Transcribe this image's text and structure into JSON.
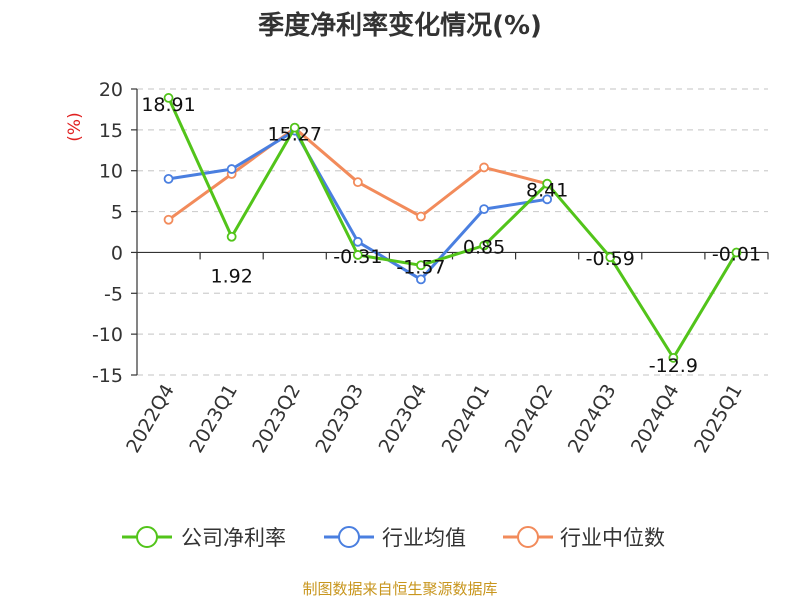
{
  "chart_data": {
    "type": "line",
    "title": "季度净利率变化情况(%)",
    "ylabel": "(%)",
    "ylim": [
      -15,
      20
    ],
    "yticks": [
      20,
      15,
      10,
      5,
      0,
      -5,
      -10,
      -15
    ],
    "grid": true,
    "legend_position": "bottom",
    "categories": [
      "2022Q4",
      "2023Q1",
      "2023Q2",
      "2023Q3",
      "2023Q4",
      "2024Q1",
      "2024Q2",
      "2024Q3",
      "2024Q4",
      "2025Q1"
    ],
    "series": [
      {
        "name": "公司净利率",
        "color": "#52c41a",
        "values": [
          18.91,
          1.92,
          15.27,
          -0.31,
          -1.57,
          0.85,
          8.41,
          -0.59,
          -12.9,
          -0.01
        ],
        "labels": [
          "18.91",
          "1.92",
          "15.27",
          "-0.31",
          "-1.57",
          "0.85",
          "8.41",
          "-0.59",
          "-12.9",
          "-0.01"
        ]
      },
      {
        "name": "行业均值",
        "color": "#4a7fe0",
        "values": [
          9.0,
          10.2,
          14.9,
          1.3,
          -3.3,
          5.3,
          6.5,
          null,
          null,
          null
        ]
      },
      {
        "name": "行业中位数",
        "color": "#f28b5b",
        "values": [
          4.0,
          9.6,
          15.2,
          8.6,
          4.4,
          10.4,
          8.4,
          null,
          null,
          null
        ]
      }
    ]
  },
  "footer": {
    "source": "制图数据来自恒生聚源数据库"
  }
}
